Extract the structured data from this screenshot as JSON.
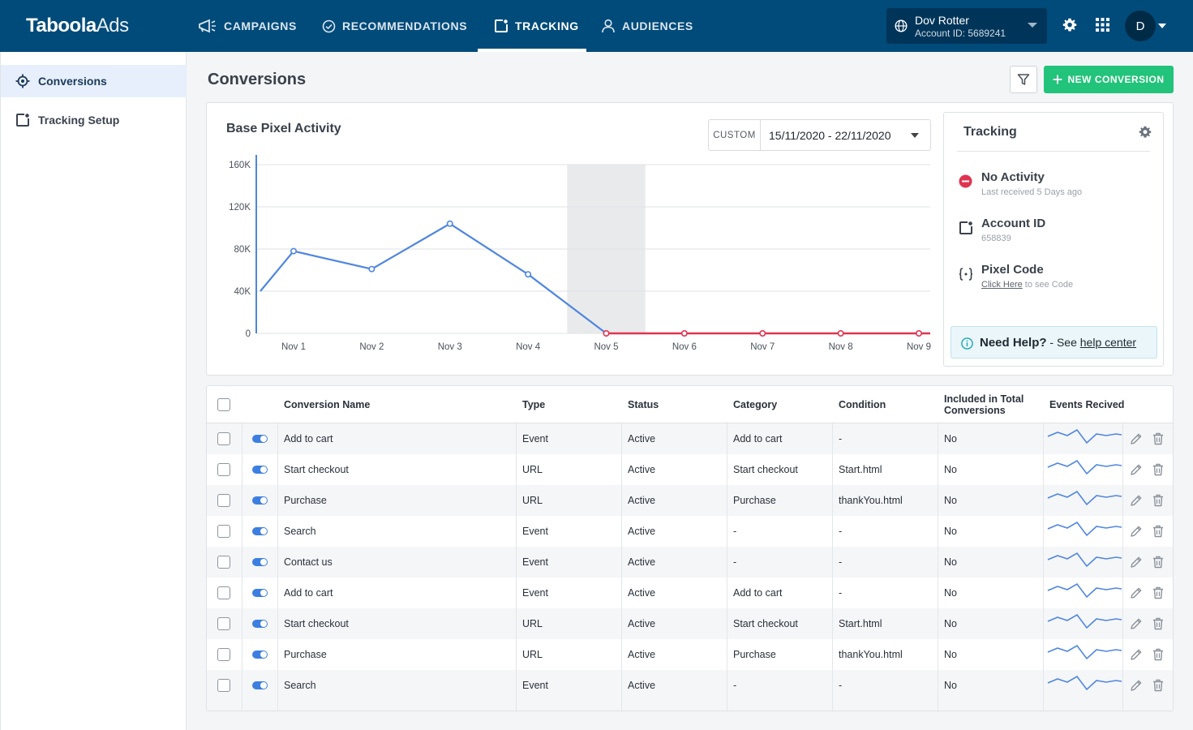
{
  "colors": {
    "topbar": "#004b7a",
    "accent_green": "#22c37a",
    "series_active": "#4f86e0",
    "series_inactive": "#e0334f"
  },
  "topbar": {
    "logo_bold": "Taboola",
    "logo_thin": "Ads",
    "nav": [
      {
        "label": "CAMPAIGNS",
        "icon": "megaphone-icon"
      },
      {
        "label": "RECOMMENDATIONS",
        "icon": "check-circle-icon"
      },
      {
        "label": "TRACKING",
        "icon": "tracking-icon",
        "active": true
      },
      {
        "label": "AUDIENCES",
        "icon": "person-icon"
      }
    ],
    "account": {
      "name": "Dov Rotter",
      "account_id": "Account ID: 5689241"
    },
    "avatar_initial": "D"
  },
  "sidebar": {
    "items": [
      {
        "label": "Conversions",
        "icon": "target-icon",
        "active": true
      },
      {
        "label": "Tracking Setup",
        "icon": "tracking-icon"
      }
    ]
  },
  "page": {
    "title": "Conversions",
    "new_button": "NEW CONVERSION"
  },
  "chart": {
    "title": "Base Pixel Activity",
    "date_tag": "CUSTOM",
    "date_range": "15/11/2020 -  22/11/2020"
  },
  "chart_data": {
    "type": "line",
    "title": "Base Pixel Activity",
    "xlabel": "",
    "ylabel": "",
    "categories": [
      "Nov 1",
      "Nov 2",
      "Nov 3",
      "Nov 4",
      "Nov 5",
      "Nov 6",
      "Nov 7",
      "Nov 8",
      "Nov 9"
    ],
    "y_ticks": [
      "160K",
      "120K",
      "80K",
      "40K",
      "0"
    ],
    "ylim": [
      0,
      160000
    ],
    "grid": true,
    "start_value": 40000,
    "values": [
      78000,
      61000,
      104000,
      56000,
      0,
      0,
      0,
      0,
      0
    ],
    "inactive_from_index": 4,
    "shaded_region": [
      "Nov 4",
      "Nov 6"
    ]
  },
  "tracking": {
    "title": "Tracking",
    "items": [
      {
        "label": "No Activity",
        "sub": "Last received 5 Days ago",
        "icon": "no-entry-icon"
      },
      {
        "label": "Account ID",
        "sub": "658839",
        "icon": "tracking-icon"
      },
      {
        "label": "Pixel Code",
        "link": "Click Here",
        "sub_rest": " to see Code",
        "icon": "code-braces-icon"
      }
    ],
    "help": {
      "bold": "Need Help?",
      "mid": " - See ",
      "link": "help center"
    }
  },
  "table": {
    "headers": {
      "name": "Conversion Name",
      "type": "Type",
      "status": "Status",
      "category": "Category",
      "condition": "Condition",
      "included_1": "Included in Total",
      "included_2": "Conversions",
      "events": "Events Recived"
    },
    "rows": [
      {
        "name": "Add to cart",
        "type": "Event",
        "status": "Active",
        "category": "Add to cart",
        "condition": "-",
        "included": "No"
      },
      {
        "name": "Start checkout",
        "type": "URL",
        "status": "Active",
        "category": "Start checkout",
        "condition": "Start.html",
        "included": "No"
      },
      {
        "name": "Purchase",
        "type": "URL",
        "status": "Active",
        "category": "Purchase",
        "condition": "thankYou.html",
        "included": "No"
      },
      {
        "name": "Search",
        "type": "Event",
        "status": "Active",
        "category": "-",
        "condition": "-",
        "included": "No"
      },
      {
        "name": "Contact us",
        "type": "Event",
        "status": "Active",
        "category": "-",
        "condition": "-",
        "included": "No"
      },
      {
        "name": "Add to cart",
        "type": "Event",
        "status": "Active",
        "category": "Add to cart",
        "condition": "-",
        "included": "No"
      },
      {
        "name": "Start checkout",
        "type": "URL",
        "status": "Active",
        "category": "Start checkout",
        "condition": "Start.html",
        "included": "No"
      },
      {
        "name": "Purchase",
        "type": "URL",
        "status": "Active",
        "category": "Purchase",
        "condition": "thankYou.html",
        "included": "No"
      },
      {
        "name": "Search",
        "type": "Event",
        "status": "Active",
        "category": "-",
        "condition": "-",
        "included": "No"
      }
    ]
  }
}
